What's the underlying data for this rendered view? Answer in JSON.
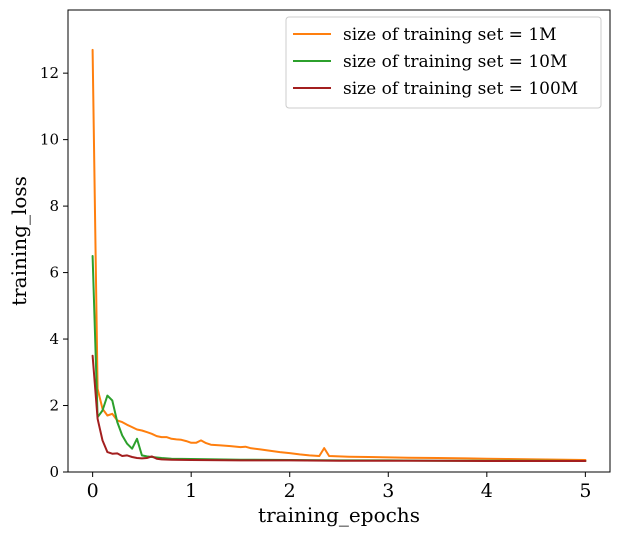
{
  "chart_data": {
    "type": "line",
    "title": "",
    "xlabel": "training_epochs",
    "ylabel": "training_loss",
    "xlim": [
      -0.25,
      5.25
    ],
    "ylim": [
      0,
      13.9
    ],
    "xticks": [
      0,
      1,
      2,
      3,
      4,
      5
    ],
    "xtick_labels": [
      "0",
      "1",
      "2",
      "3",
      "4",
      "5"
    ],
    "yticks": [
      0,
      2,
      4,
      6,
      8,
      10,
      12
    ],
    "ytick_labels": [
      "0",
      "2",
      "4",
      "6",
      "8",
      "10",
      "12"
    ],
    "grid": false,
    "legend_position": "top-right",
    "series": [
      {
        "name": "size of training set = 1M",
        "color": "#ff7f0e",
        "x": [
          0,
          0.05,
          0.1,
          0.15,
          0.2,
          0.25,
          0.3,
          0.35,
          0.4,
          0.45,
          0.5,
          0.55,
          0.6,
          0.65,
          0.7,
          0.75,
          0.8,
          0.85,
          0.9,
          0.95,
          1.0,
          1.05,
          1.1,
          1.15,
          1.2,
          1.3,
          1.4,
          1.5,
          1.55,
          1.6,
          1.7,
          1.8,
          1.9,
          2.0,
          2.1,
          2.2,
          2.3,
          2.35,
          2.4,
          2.5,
          2.6,
          2.8,
          3.0,
          3.2,
          3.5,
          3.8,
          4.0,
          4.2,
          4.5,
          4.8,
          5.0
        ],
        "values": [
          12.7,
          2.5,
          1.9,
          1.7,
          1.75,
          1.55,
          1.5,
          1.42,
          1.35,
          1.28,
          1.25,
          1.2,
          1.15,
          1.08,
          1.05,
          1.05,
          1.0,
          0.98,
          0.97,
          0.93,
          0.88,
          0.88,
          0.95,
          0.87,
          0.82,
          0.8,
          0.78,
          0.75,
          0.76,
          0.72,
          0.68,
          0.64,
          0.6,
          0.57,
          0.53,
          0.5,
          0.48,
          0.72,
          0.48,
          0.47,
          0.46,
          0.45,
          0.44,
          0.43,
          0.42,
          0.41,
          0.4,
          0.39,
          0.38,
          0.37,
          0.36
        ]
      },
      {
        "name": "size of training set = 10M",
        "color": "#2ca02c",
        "x": [
          0,
          0.05,
          0.1,
          0.15,
          0.2,
          0.25,
          0.3,
          0.35,
          0.4,
          0.45,
          0.5,
          0.55,
          0.6,
          0.7,
          0.8,
          1.0,
          1.5,
          2.0,
          2.5,
          3.0,
          3.5,
          4.0,
          4.5,
          5.0
        ],
        "values": [
          6.5,
          1.65,
          1.85,
          2.3,
          2.15,
          1.5,
          1.1,
          0.85,
          0.7,
          1.0,
          0.5,
          0.47,
          0.45,
          0.42,
          0.4,
          0.39,
          0.37,
          0.36,
          0.35,
          0.35,
          0.34,
          0.34,
          0.34,
          0.33
        ]
      },
      {
        "name": "size of training set = 100M",
        "color": "#a31f1f",
        "x": [
          0,
          0.05,
          0.1,
          0.15,
          0.2,
          0.25,
          0.3,
          0.35,
          0.4,
          0.45,
          0.5,
          0.55,
          0.6,
          0.65,
          0.7,
          0.8,
          1.0,
          1.5,
          2.0,
          2.5,
          3.0,
          3.5,
          4.0,
          4.5,
          5.0
        ],
        "values": [
          3.5,
          1.6,
          0.95,
          0.6,
          0.55,
          0.56,
          0.48,
          0.5,
          0.45,
          0.42,
          0.41,
          0.42,
          0.47,
          0.4,
          0.38,
          0.37,
          0.36,
          0.35,
          0.35,
          0.34,
          0.34,
          0.34,
          0.33,
          0.33,
          0.33
        ]
      }
    ]
  }
}
